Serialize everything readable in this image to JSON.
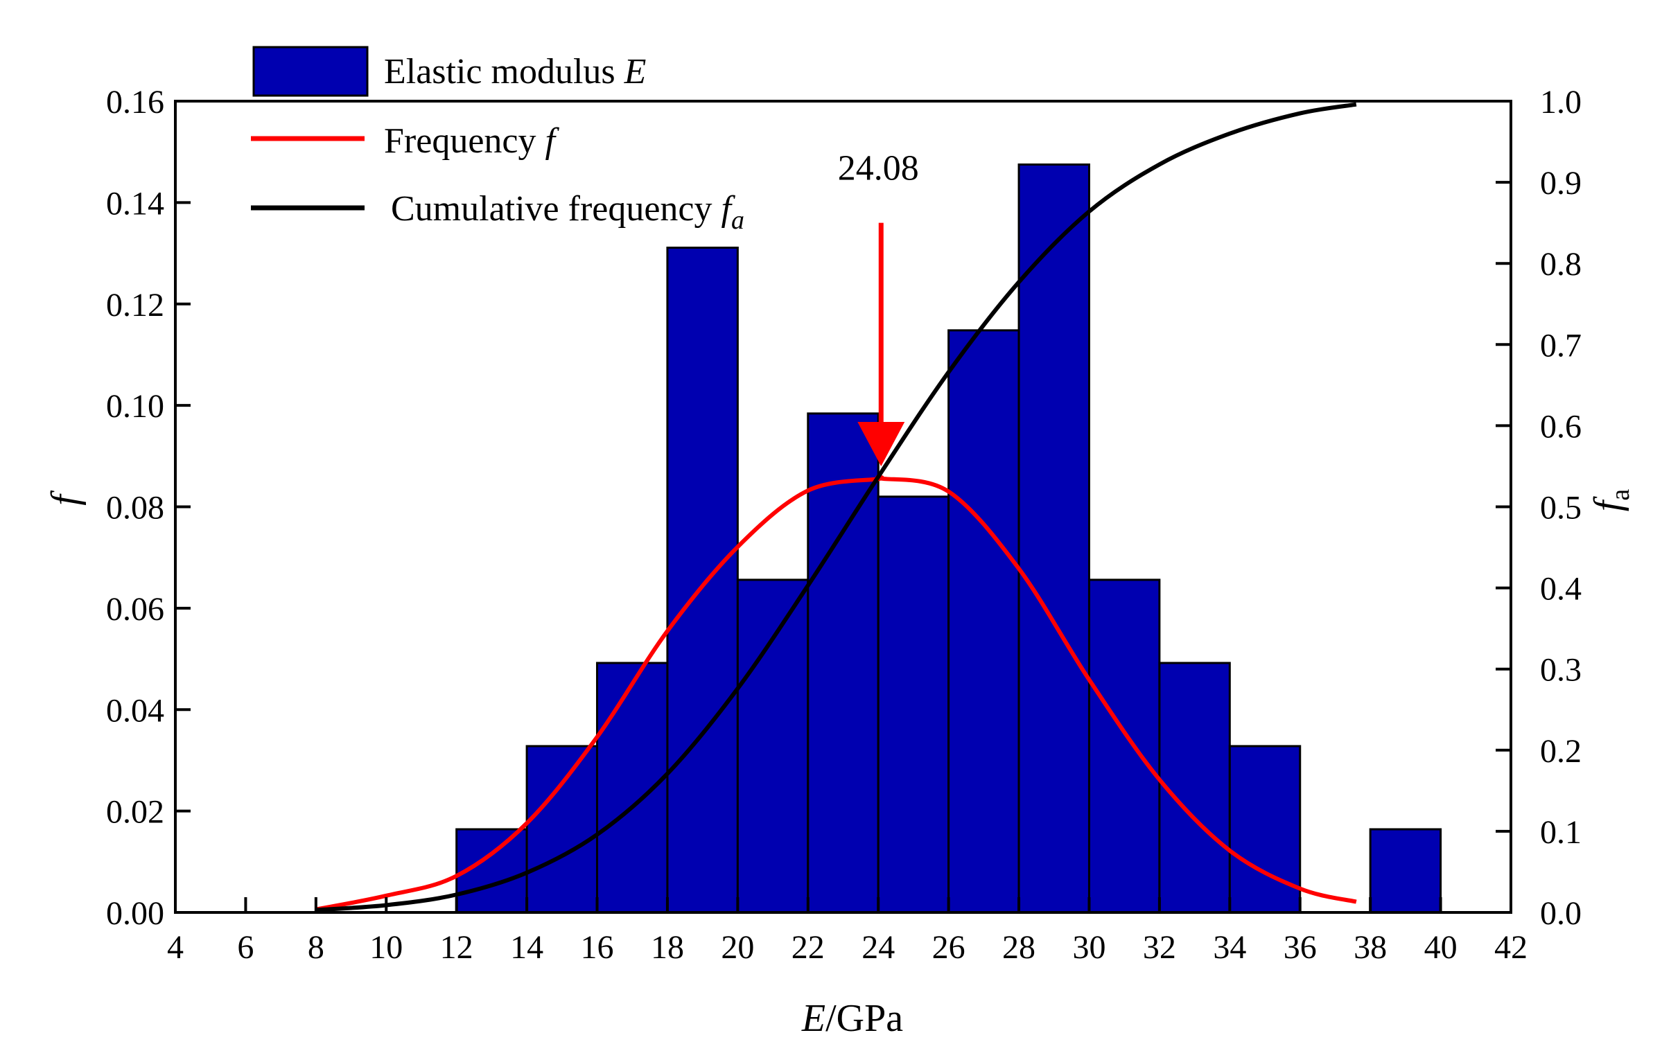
{
  "chart_data": {
    "type": "bar",
    "title": "",
    "xlabel": {
      "var": "E",
      "unit": "/GPa"
    },
    "ylabel_left": "f",
    "ylabel_right": {
      "base": "f",
      "sub": "a"
    },
    "xlim": [
      4,
      42
    ],
    "ylim_left": [
      0,
      0.16
    ],
    "ylim_right": [
      0,
      1.0
    ],
    "x_ticks": [
      "4",
      "6",
      "8",
      "10",
      "12",
      "14",
      "16",
      "18",
      "20",
      "22",
      "24",
      "26",
      "28",
      "30",
      "32",
      "34",
      "36",
      "38",
      "40",
      "42"
    ],
    "y_left_ticks": [
      "0.00",
      "0.02",
      "0.04",
      "0.06",
      "0.08",
      "0.10",
      "0.12",
      "0.14",
      "0.16"
    ],
    "y_right_ticks": [
      "0.0",
      "0.1",
      "0.2",
      "0.3",
      "0.4",
      "0.5",
      "0.6",
      "0.7",
      "0.8",
      "0.9",
      "1.0"
    ],
    "grid": false,
    "legend_position": "top-left",
    "histogram": {
      "name": "Elastic modulus E",
      "color": "#0000b0",
      "bins": [
        {
          "x0": 12,
          "x1": 14,
          "value": 0.0164
        },
        {
          "x0": 14,
          "x1": 16,
          "value": 0.0328
        },
        {
          "x0": 16,
          "x1": 18,
          "value": 0.0492
        },
        {
          "x0": 18,
          "x1": 20,
          "value": 0.1311
        },
        {
          "x0": 20,
          "x1": 22,
          "value": 0.0656
        },
        {
          "x0": 22,
          "x1": 24,
          "value": 0.0984
        },
        {
          "x0": 24,
          "x1": 26,
          "value": 0.082
        },
        {
          "x0": 26,
          "x1": 28,
          "value": 0.1148
        },
        {
          "x0": 28,
          "x1": 30,
          "value": 0.1475
        },
        {
          "x0": 30,
          "x1": 32,
          "value": 0.0656
        },
        {
          "x0": 32,
          "x1": 34,
          "value": 0.0492
        },
        {
          "x0": 34,
          "x1": 36,
          "value": 0.0328
        },
        {
          "x0": 38,
          "x1": 40,
          "value": 0.0164
        }
      ]
    },
    "series": [
      {
        "name": "Frequency f",
        "axis": "left",
        "color": "#ff0000",
        "x": [
          8,
          10,
          12,
          14,
          16,
          18,
          20,
          22,
          24,
          24.08,
          26,
          28,
          30,
          32,
          34,
          36,
          37.6
        ],
        "values": [
          0.0006,
          0.0033,
          0.0072,
          0.0176,
          0.0346,
          0.0555,
          0.0721,
          0.0832,
          0.0855,
          0.0856,
          0.083,
          0.0678,
          0.0459,
          0.0262,
          0.0122,
          0.0047,
          0.0021
        ]
      },
      {
        "name": "Cumulative frequency fa",
        "axis": "right",
        "color": "#000000",
        "x": [
          8,
          10,
          12,
          14,
          16,
          18,
          20,
          22,
          24,
          26,
          28,
          30,
          32,
          34,
          36,
          37.6
        ],
        "values": [
          0.003,
          0.009,
          0.022,
          0.049,
          0.096,
          0.171,
          0.276,
          0.403,
          0.537,
          0.666,
          0.777,
          0.864,
          0.922,
          0.96,
          0.985,
          0.996
        ]
      }
    ],
    "annotations": [
      {
        "label": "24.08",
        "x": 24.08,
        "arrow_from_y": 0.136,
        "arrow_to_y": 0.088,
        "color": "#ff0000"
      }
    ]
  },
  "legend": {
    "hist_label": "Elastic modulus ",
    "hist_var": "E",
    "freq_label": "Frequency ",
    "freq_var": "f",
    "cum_label": "Cumulative frequency ",
    "cum_var": "f",
    "cum_sub": "a"
  }
}
